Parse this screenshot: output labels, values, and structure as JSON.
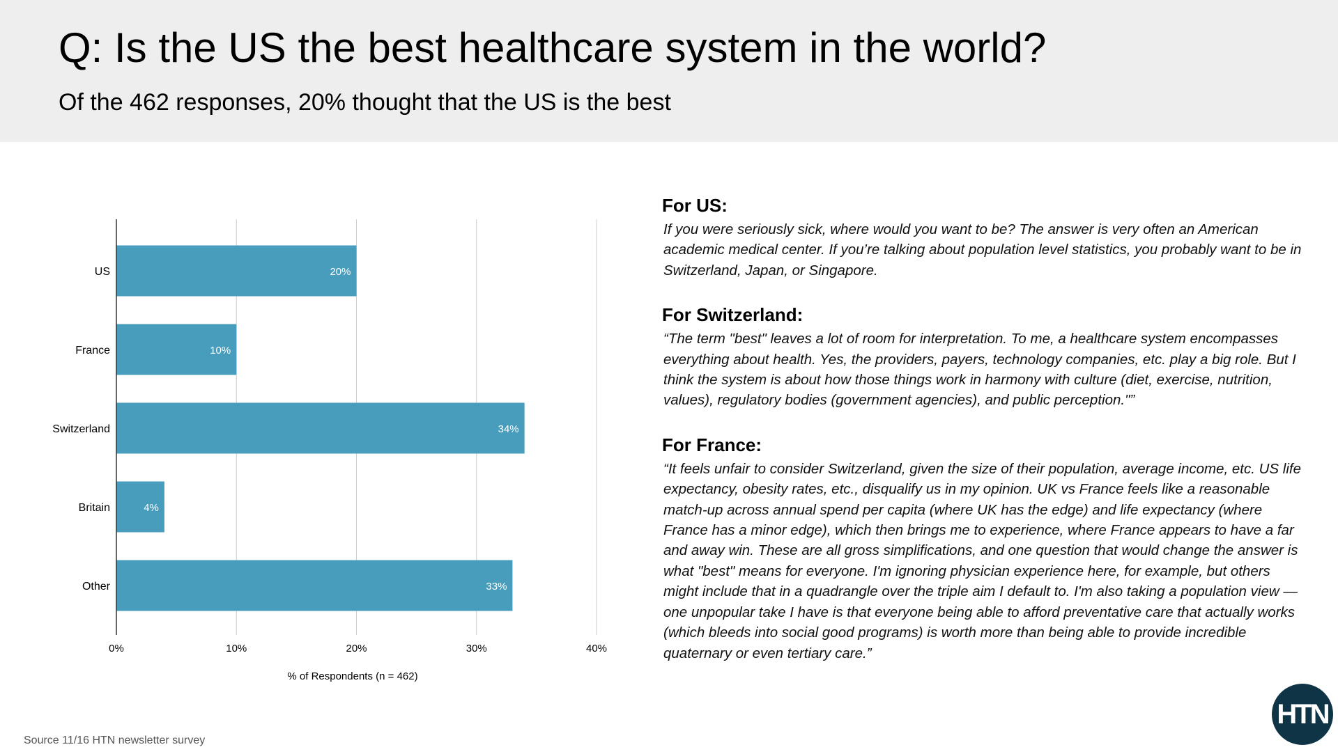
{
  "header": {
    "title": "Q: Is the US the best healthcare system in the world?",
    "subtitle": "Of the 462 responses, 20% thought that the US is the best"
  },
  "chart_data": {
    "type": "bar",
    "orientation": "horizontal",
    "categories": [
      "US",
      "France",
      "Switzerland",
      "Britain",
      "Other"
    ],
    "values": [
      20,
      10,
      34,
      4,
      33
    ],
    "data_labels": [
      "20%",
      "10%",
      "34%",
      "4%",
      "33%"
    ],
    "xlabel": "% of Respondents (n = 462)",
    "ylabel": "",
    "xlim": [
      0,
      40
    ],
    "xticks": [
      "0%",
      "10%",
      "20%",
      "30%",
      "40%"
    ],
    "grid": true,
    "bar_color": "#489dbc"
  },
  "comments": [
    {
      "heading": "For US:",
      "quote": "If you were seriously sick, where would you want to be? The answer is very often an American academic medical center. If you’re talking about population level statistics, you probably want to be in Switzerland, Japan, or Singapore."
    },
    {
      "heading": "For Switzerland:",
      "quote": "“The term \"best\" leaves a lot of room for interpretation. To me, a healthcare system encompasses everything about health. Yes, the providers, payers, technology companies, etc. play a big role. But I think the system is about how those things work in harmony with culture (diet, exercise, nutrition, values), regulatory bodies (government agencies), and public perception.\"”"
    },
    {
      "heading": "For France:",
      "quote": "“It feels unfair to consider Switzerland, given the size of their population, average income, etc. US life expectancy, obesity rates, etc., disqualify us in my opinion. UK vs France feels like a reasonable match-up across annual spend per capita (where UK has the edge) and life expectancy (where France has a minor edge), which then brings me to experience, where France appears to have a far and away win. These are all gross simplifications, and one question that would change the answer is what \"best\" means for everyone. I'm ignoring physician experience here, for example, but others might include that in a quadrangle over the triple aim I default to. I'm also taking a population view — one unpopular take I have is that everyone being able to afford preventative care that actually works (which bleeds into social good programs) is worth more than being able to provide incredible quaternary or even tertiary care.”"
    }
  ],
  "source": "Source 11/16 HTN newsletter survey",
  "logo": {
    "text": "HTN",
    "color": "#0f3446"
  }
}
